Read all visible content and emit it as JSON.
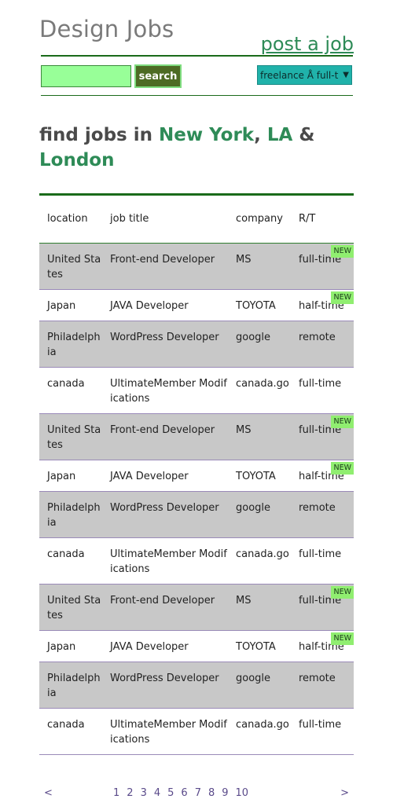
{
  "header": {
    "title": "Design Jobs",
    "post_link": "post a job"
  },
  "search": {
    "input_value": "",
    "button_label": "search",
    "job_type_selected": "freelance Å full-t"
  },
  "headline": {
    "prefix": "find jobs in ",
    "city1": "New York",
    "sep1": ", ",
    "city2": "LA",
    "sep2": " & ",
    "city3": "London"
  },
  "table": {
    "headers": {
      "location": "location",
      "title": "job title",
      "company": "company",
      "rt": "R/T"
    },
    "badge_label": "NEW",
    "rows": [
      {
        "location": "United States",
        "title": "Front-end Developer",
        "company": "MS",
        "rt": "full-time",
        "new": true
      },
      {
        "location": "Japan",
        "title": "JAVA Developer",
        "company": "TOYOTA",
        "rt": "half-time",
        "new": true
      },
      {
        "location": "Philadelphia",
        "title": "WordPress Developer",
        "company": "google",
        "rt": "remote",
        "new": false
      },
      {
        "location": "canada",
        "title": "UltimateMember Modifications",
        "company": "canada.go",
        "rt": "full-time",
        "new": false
      },
      {
        "location": "United States",
        "title": "Front-end Developer",
        "company": "MS",
        "rt": "full-time",
        "new": true
      },
      {
        "location": "Japan",
        "title": "JAVA Developer",
        "company": "TOYOTA",
        "rt": "half-time",
        "new": true
      },
      {
        "location": "Philadelphia",
        "title": "WordPress Developer",
        "company": "google",
        "rt": "remote",
        "new": false
      },
      {
        "location": "canada",
        "title": "UltimateMember Modifications",
        "company": "canada.go",
        "rt": "full-time",
        "new": false
      },
      {
        "location": "United States",
        "title": "Front-end Developer",
        "company": "MS",
        "rt": "full-time",
        "new": true
      },
      {
        "location": "Japan",
        "title": "JAVA Developer",
        "company": "TOYOTA",
        "rt": "half-time",
        "new": true
      },
      {
        "location": "Philadelphia",
        "title": "WordPress Developer",
        "company": "google",
        "rt": "remote",
        "new": false
      },
      {
        "location": "canada",
        "title": "UltimateMember Modifications",
        "company": "canada.go",
        "rt": "full-time",
        "new": false
      }
    ]
  },
  "pagination": {
    "prev": "<",
    "next": ">",
    "pages": [
      "1",
      "2",
      "3",
      "4",
      "5",
      "6",
      "7",
      "8",
      "9",
      "10"
    ]
  }
}
